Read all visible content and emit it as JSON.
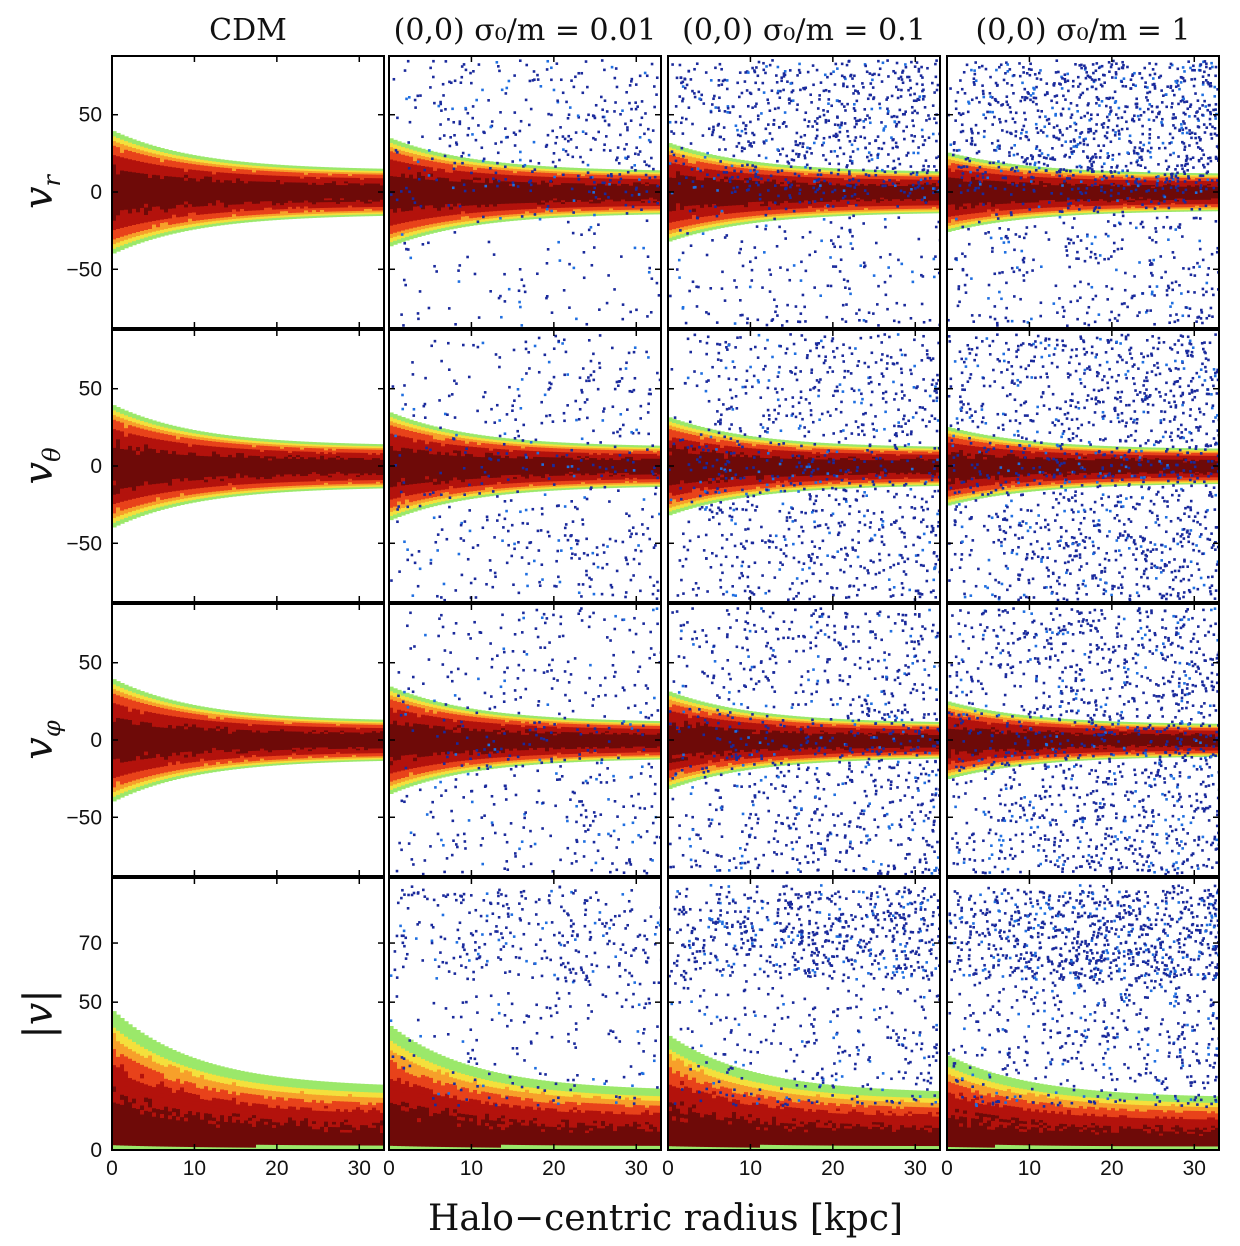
{
  "chart_data": {
    "type": "heatmap",
    "description_free": true,
    "columns": [
      {
        "key": "cdm",
        "title": "CDM",
        "scatter_density": 0.0,
        "core_scale": 1.0
      },
      {
        "key": "s001",
        "title": "(0,0) σ₀/m = 0.01",
        "scatter_density": 0.05,
        "core_scale": 0.85
      },
      {
        "key": "s01",
        "title": "(0,0) σ₀/m = 0.1",
        "scatter_density": 0.1,
        "core_scale": 0.75
      },
      {
        "key": "s1",
        "title": "(0,0) σ₀/m = 1",
        "scatter_density": 0.14,
        "core_scale": 0.55
      }
    ],
    "rows": [
      {
        "key": "vr",
        "label": "v",
        "subscript": "r",
        "ylim": [
          -88,
          88
        ],
        "yticks": [
          -50,
          0,
          50
        ],
        "yticklabels": [
          "−50",
          "0",
          "50"
        ],
        "envelope_center": 40,
        "envelope_outer": 14
      },
      {
        "key": "vtheta",
        "label": "v",
        "subscript": "θ",
        "ylim": [
          -88,
          88
        ],
        "yticks": [
          -50,
          0,
          50
        ],
        "yticklabels": [
          "−50",
          "0",
          "50"
        ],
        "envelope_center": 40,
        "envelope_outer": 13
      },
      {
        "key": "vphi",
        "label": "v",
        "subscript": "φ",
        "ylim": [
          -88,
          88
        ],
        "yticks": [
          -50,
          0,
          50
        ],
        "yticklabels": [
          "−50",
          "0",
          "50"
        ],
        "envelope_center": 40,
        "envelope_outer": 12
      },
      {
        "key": "vabs",
        "label": "|v|",
        "subscript": "",
        "ylim": [
          0,
          92
        ],
        "yticks": [
          0,
          50,
          70
        ],
        "yticklabels": [
          "0",
          "50",
          "70"
        ],
        "envelope_center": 48,
        "envelope_outer": 20
      }
    ],
    "xlim": [
      0,
      33
    ],
    "xticks": [
      0,
      10,
      20,
      30
    ],
    "xticklabels": [
      "0",
      "10",
      "20",
      "30"
    ],
    "xlabel": "Halo−centric radius [kpc]",
    "colormap": [
      "#1a2a9c",
      "#1f6fe0",
      "#2ec8e8",
      "#9be86a",
      "#f4e03c",
      "#f7a02a",
      "#e8421a",
      "#b3120c",
      "#6e0a08"
    ]
  }
}
